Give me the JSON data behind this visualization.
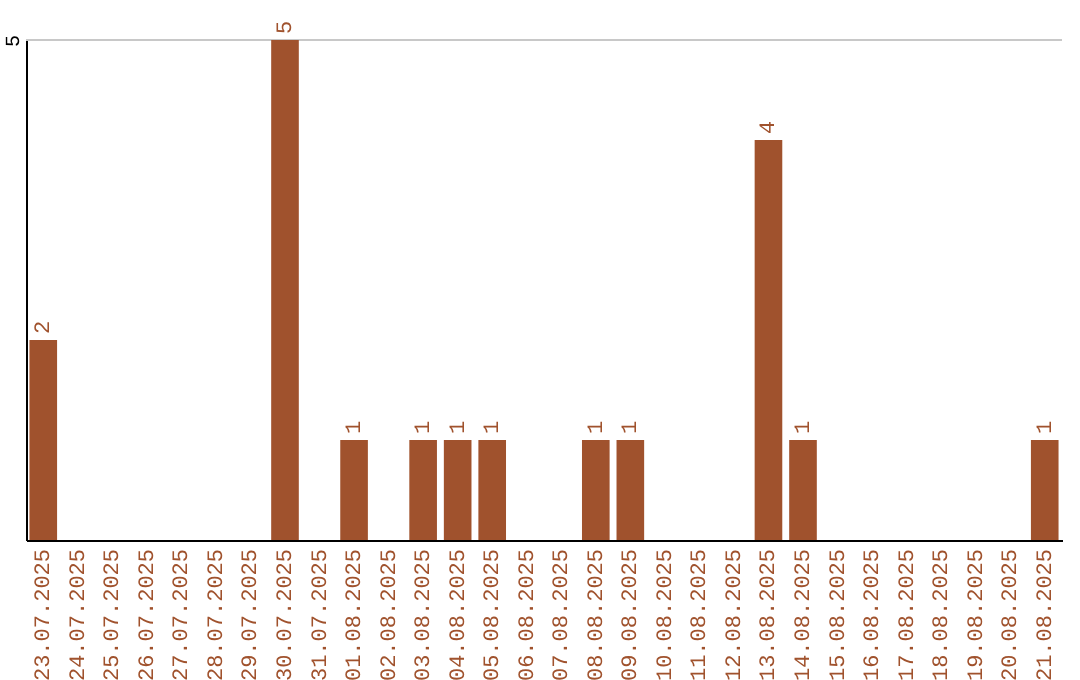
{
  "chart_data": {
    "type": "bar",
    "categories": [
      "23.07.2025",
      "24.07.2025",
      "25.07.2025",
      "26.07.2025",
      "27.07.2025",
      "28.07.2025",
      "29.07.2025",
      "30.07.2025",
      "31.07.2025",
      "01.08.2025",
      "02.08.2025",
      "03.08.2025",
      "04.08.2025",
      "05.08.2025",
      "06.08.2025",
      "07.08.2025",
      "08.08.2025",
      "09.08.2025",
      "10.08.2025",
      "11.08.2025",
      "12.08.2025",
      "13.08.2025",
      "14.08.2025",
      "15.08.2025",
      "16.08.2025",
      "17.08.2025",
      "18.08.2025",
      "19.08.2025",
      "20.08.2025",
      "21.08.2025"
    ],
    "values": [
      2,
      0,
      0,
      0,
      0,
      0,
      0,
      5,
      0,
      1,
      0,
      1,
      1,
      1,
      0,
      0,
      1,
      1,
      0,
      0,
      0,
      4,
      1,
      0,
      0,
      0,
      0,
      0,
      0,
      1
    ],
    "value_labels": [
      "2",
      null,
      null,
      null,
      null,
      null,
      null,
      "5",
      null,
      "1",
      null,
      "1",
      "1",
      "1",
      null,
      null,
      "1",
      "1",
      null,
      null,
      null,
      "4",
      "1",
      null,
      null,
      null,
      null,
      null,
      null,
      "1"
    ],
    "color": "#a0522d",
    "ylim": [
      0,
      5
    ],
    "yticks": [
      5
    ],
    "ref_lines": [
      {
        "axis": "y",
        "value": 5,
        "color": "#c8c8c8"
      }
    ]
  }
}
